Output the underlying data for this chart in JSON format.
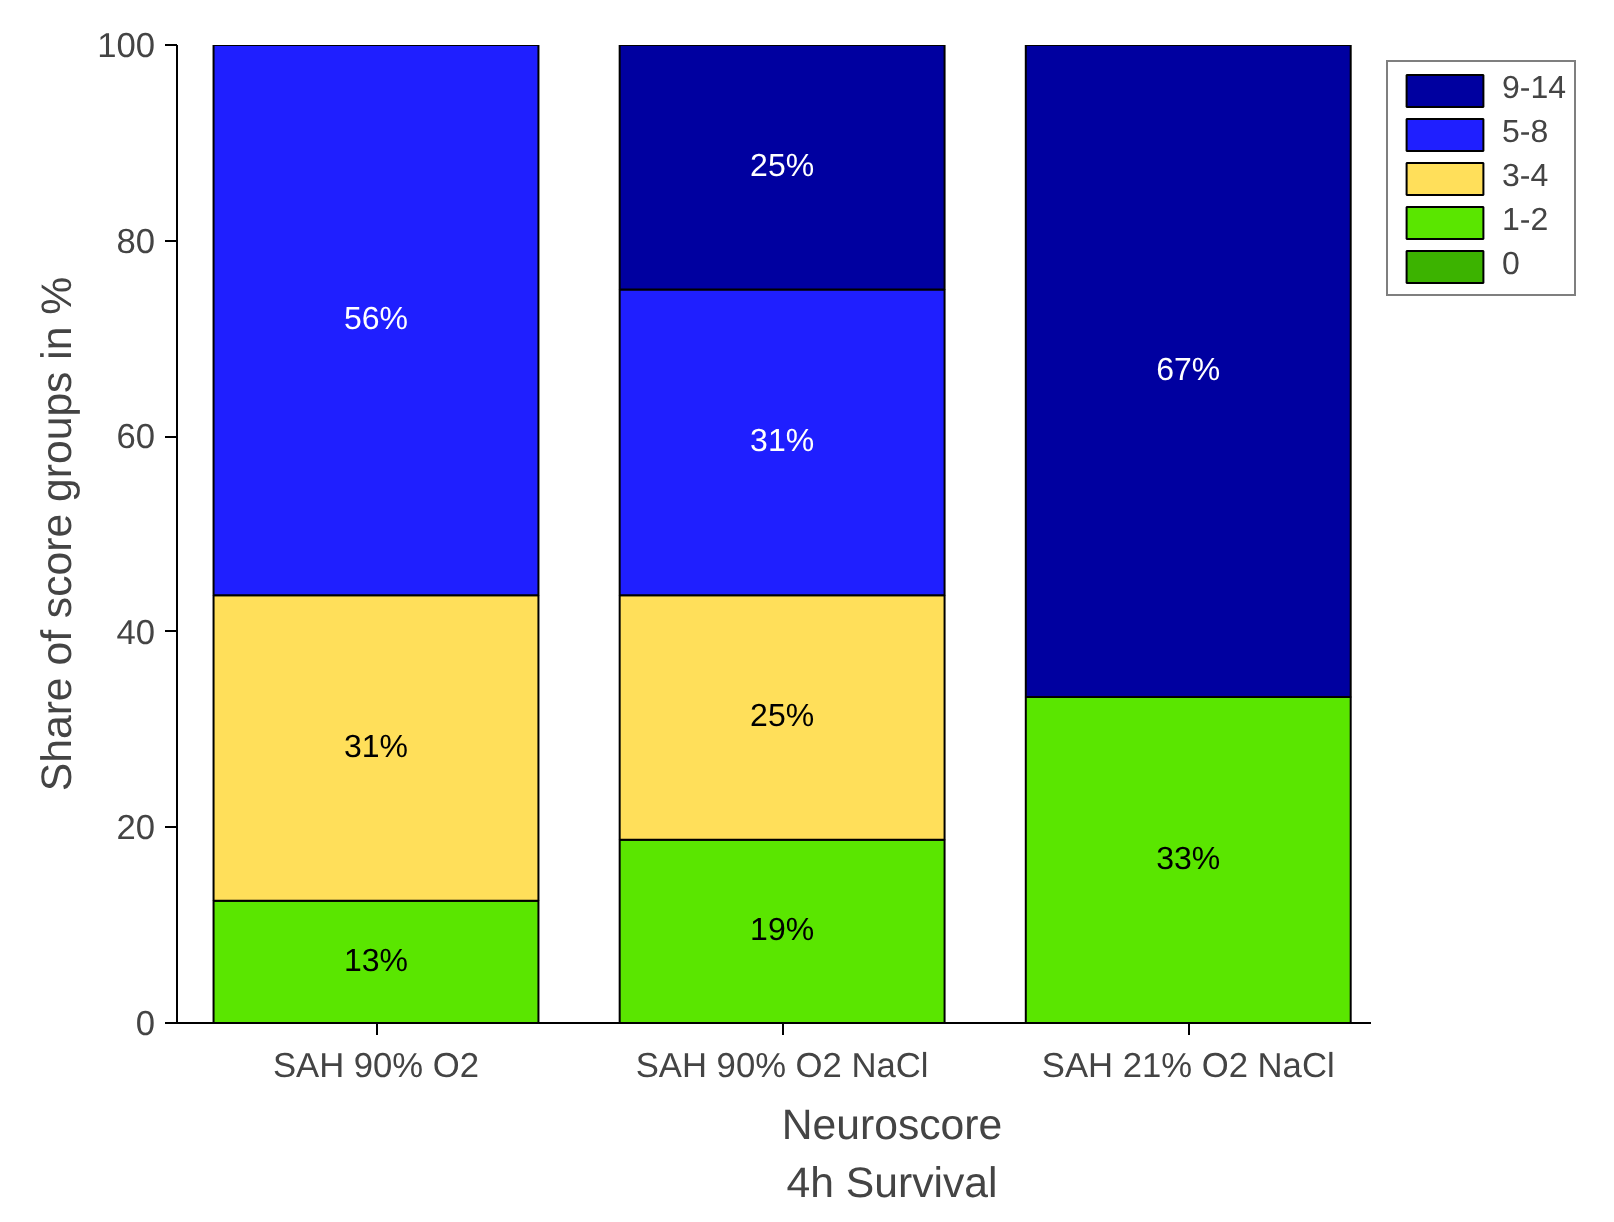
{
  "chart_data": {
    "type": "bar",
    "stacked": true,
    "xlabel": "Neuroscore\n4h Survival",
    "ylabel": "Share of score groups in %",
    "categories": [
      "SAH 90% O2",
      "SAH 90% O2 NaCl",
      "SAH 21% O2 NaCl"
    ],
    "ylim": [
      0,
      100
    ],
    "yticks": [
      0,
      20,
      40,
      60,
      80,
      100
    ],
    "grid": false,
    "legend": "top right",
    "series": [
      {
        "name": "0",
        "color": "#3cb300",
        "values": [
          null,
          null,
          null
        ],
        "value_labels": [
          null,
          null,
          null
        ]
      },
      {
        "name": "1-2",
        "color": "#5ae600",
        "values": [
          12.5,
          18.75,
          33.33
        ],
        "value_labels": [
          "13%",
          "19%",
          "33%"
        ]
      },
      {
        "name": "3-4",
        "color": "#ffdf5a",
        "values": [
          31.25,
          25,
          null
        ],
        "value_labels": [
          "31%",
          "25%",
          null
        ]
      },
      {
        "name": "5-8",
        "color": "#1f1fff",
        "values": [
          56.25,
          31.25,
          null
        ],
        "value_labels": [
          "56%",
          "31%",
          null
        ]
      },
      {
        "name": "9-14",
        "color": "#0000a0",
        "values": [
          null,
          25,
          66.67
        ],
        "value_labels": [
          null,
          "25%",
          "67%"
        ]
      }
    ]
  }
}
